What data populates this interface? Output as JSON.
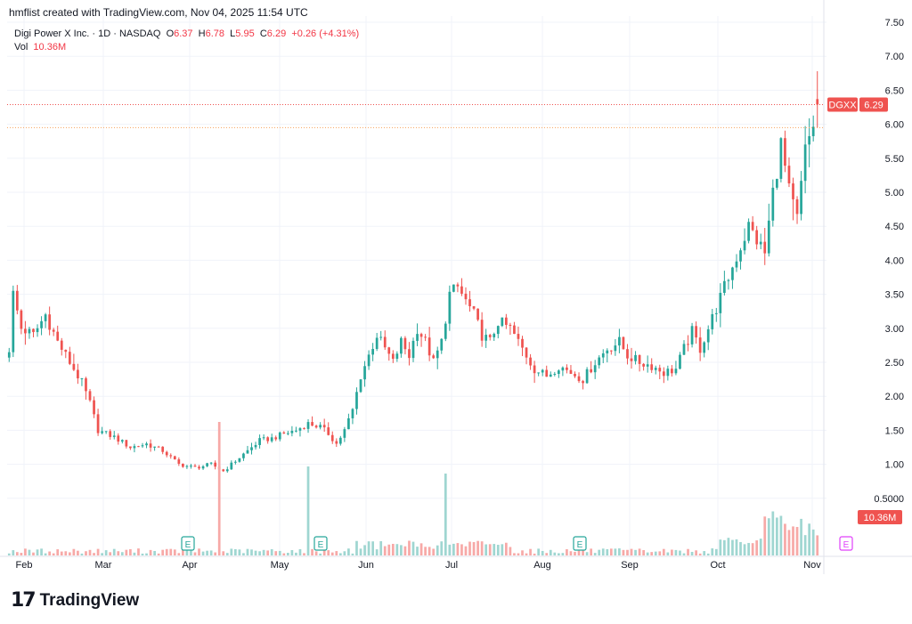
{
  "header": {
    "credit": "hmflist created with TradingView.com, Nov 04, 2025 11:54 UTC"
  },
  "legend": {
    "symbol": "Digi Power X Inc. · 1D · NASDAQ",
    "open_label": "O",
    "open": "6.37",
    "high_label": "H",
    "high": "6.78",
    "low_label": "L",
    "low": "5.95",
    "close_label": "C",
    "close": "6.29",
    "change": "+0.26 (+4.31%)",
    "vol_label": "Vol",
    "vol": "10.36M"
  },
  "badges": {
    "ticker": "DGXX",
    "price": "6.29",
    "volume": "10.36M"
  },
  "footer": {
    "brand": "TradingView",
    "brand_mark": "17"
  },
  "colors": {
    "up": "#26a69a",
    "down": "#ef5350",
    "grid": "#f0f3fa",
    "vol_up": "#9fd6d1",
    "vol_down": "#f7a9a7",
    "earnings": "#26a69a",
    "earnings_future": "#e040fb"
  },
  "chart_data": {
    "type": "candlestick",
    "x_axis_labels": [
      "Feb",
      "Mar",
      "Apr",
      "May",
      "Jun",
      "Jul",
      "Aug",
      "Sep",
      "Oct",
      "Nov"
    ],
    "y_axis_labels": [
      "7.50",
      "7.00",
      "6.50",
      "6.00",
      "5.50",
      "5.00",
      "4.50",
      "4.00",
      "3.50",
      "3.00",
      "2.50",
      "2.00",
      "1.50",
      "1.00",
      "0.5000"
    ],
    "ylim": [
      0.2,
      7.5
    ],
    "last_price": 6.29,
    "earnings_markers": [
      {
        "label": "E"
      },
      {
        "label": "E"
      },
      {
        "label": "E"
      },
      {
        "label": "E",
        "future": true
      }
    ],
    "anchors": [
      [
        0,
        2.7
      ],
      [
        1,
        3.5
      ],
      [
        3,
        3.0
      ],
      [
        6,
        2.9
      ],
      [
        9,
        3.2
      ],
      [
        12,
        2.8
      ],
      [
        15,
        2.5
      ],
      [
        18,
        2.2
      ],
      [
        20,
        1.9
      ],
      [
        22,
        1.5
      ],
      [
        26,
        1.4
      ],
      [
        30,
        1.25
      ],
      [
        34,
        1.3
      ],
      [
        38,
        1.2
      ],
      [
        42,
        1.0
      ],
      [
        46,
        0.95
      ],
      [
        50,
        1.0
      ],
      [
        53,
        0.9
      ],
      [
        56,
        1.05
      ],
      [
        59,
        1.2
      ],
      [
        62,
        1.35
      ],
      [
        65,
        1.38
      ],
      [
        68,
        1.45
      ],
      [
        71,
        1.5
      ],
      [
        74,
        1.6
      ],
      [
        77,
        1.55
      ],
      [
        79,
        1.45
      ],
      [
        81,
        1.3
      ],
      [
        83,
        1.5
      ],
      [
        85,
        1.8
      ],
      [
        87,
        2.3
      ],
      [
        89,
        2.6
      ],
      [
        91,
        2.9
      ],
      [
        93,
        2.7
      ],
      [
        95,
        2.5
      ],
      [
        97,
        2.8
      ],
      [
        99,
        2.6
      ],
      [
        101,
        3.0
      ],
      [
        103,
        2.8
      ],
      [
        105,
        2.5
      ],
      [
        107,
        2.8
      ],
      [
        109,
        3.5
      ],
      [
        111,
        3.6
      ],
      [
        113,
        3.4
      ],
      [
        115,
        3.2
      ],
      [
        117,
        2.9
      ],
      [
        119,
        2.8
      ],
      [
        121,
        3.1
      ],
      [
        124,
        3.0
      ],
      [
        127,
        2.7
      ],
      [
        130,
        2.4
      ],
      [
        133,
        2.3
      ],
      [
        136,
        2.45
      ],
      [
        139,
        2.35
      ],
      [
        142,
        2.25
      ],
      [
        145,
        2.5
      ],
      [
        148,
        2.7
      ],
      [
        151,
        2.8
      ],
      [
        153,
        2.6
      ],
      [
        156,
        2.5
      ],
      [
        159,
        2.45
      ],
      [
        162,
        2.35
      ],
      [
        165,
        2.4
      ],
      [
        167,
        2.7
      ],
      [
        169,
        2.95
      ],
      [
        171,
        2.7
      ],
      [
        173,
        3.0
      ],
      [
        175,
        3.3
      ],
      [
        177,
        3.6
      ],
      [
        179,
        3.9
      ],
      [
        181,
        4.2
      ],
      [
        183,
        4.5
      ],
      [
        185,
        4.3
      ],
      [
        187,
        4.1
      ],
      [
        189,
        5.0
      ],
      [
        191,
        5.7
      ],
      [
        193,
        5.0
      ],
      [
        195,
        4.6
      ],
      [
        197,
        5.6
      ],
      [
        199,
        6.0
      ],
      [
        200,
        6.29
      ]
    ],
    "last_candle": {
      "open": 6.37,
      "high": 6.78,
      "low": 5.95,
      "close": 6.29
    },
    "volume_spikes": [
      {
        "label": "Apr spike"
      },
      {
        "label": "May spike"
      },
      {
        "label": "Jul spike"
      }
    ]
  }
}
